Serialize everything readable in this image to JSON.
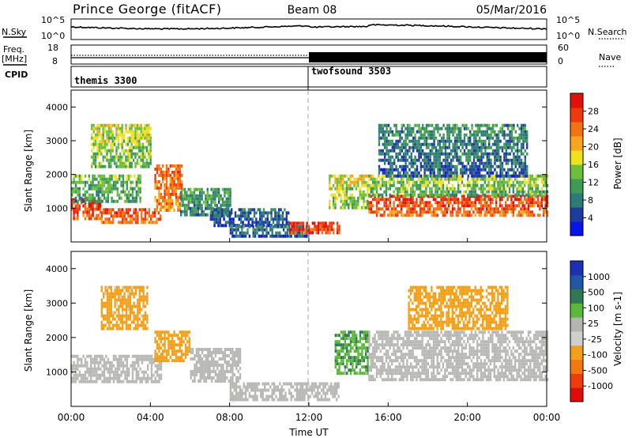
{
  "header": {
    "station": "Prince George (fitACF)",
    "beam": "Beam 08",
    "date": "05/Mar/2016"
  },
  "strip_labels": {
    "nsky": "N.Sky",
    "nsearch": "N.Search",
    "freq_top": "Freq.",
    "freq_unit": "[MHz]",
    "nave": "Nave",
    "cpid": "CPID",
    "noise_top_left": "10^5",
    "noise_bottom_left": "10^0",
    "noise_top_right": "10^5",
    "noise_bottom_right": "10^0",
    "freq_top_tick": "18",
    "freq_bottom_tick": "8",
    "nave_top_tick": "60",
    "nave_bottom_tick": "0"
  },
  "cpid_modes": [
    {
      "label": "themis 3300",
      "start_hour": 0,
      "end_hour": 12
    },
    {
      "label": "twofsound 3503",
      "start_hour": 12,
      "end_hour": 24
    }
  ],
  "colors": {
    "power_scale": [
      "#0a14e6",
      "#1e3c9c",
      "#2d7a78",
      "#3f9a55",
      "#6cbf3c",
      "#f0e01e",
      "#f7a51e",
      "#f07314",
      "#ee3a0e",
      "#e0100b"
    ],
    "velocity_scale": [
      "#1d2fb4",
      "#2257a8",
      "#2f7a55",
      "#5cb83a",
      "#b4b4b0",
      "#cfcfcb",
      "#f2a01a",
      "#f07a0f",
      "#ee3c0f",
      "#e00c0c"
    ],
    "ground_scatter": "#b8b8b4"
  },
  "chart_data": [
    {
      "type": "heatmap",
      "panel": "power",
      "ylabel": "Slant Range [km]",
      "yticks": [
        "1000",
        "2000",
        "3000",
        "4000"
      ],
      "colorbar_label": "Power [dB]",
      "colorbar_ticks": [
        "4",
        "8",
        "12",
        "16",
        "20",
        "24",
        "28"
      ],
      "ylim": [
        0,
        4500
      ],
      "zlim": [
        0,
        32
      ],
      "regions": [
        {
          "t0": 0.0,
          "t1": 1.5,
          "r0": 700,
          "r1": 1300,
          "level": 29
        },
        {
          "t0": 1.5,
          "t1": 4.5,
          "r0": 600,
          "r1": 1000,
          "level": 27
        },
        {
          "t0": 4.2,
          "t1": 5.6,
          "r0": 900,
          "r1": 2300,
          "level": 26
        },
        {
          "t0": 0.0,
          "t1": 3.5,
          "r0": 1200,
          "r1": 2000,
          "level": 14
        },
        {
          "t0": 1.0,
          "t1": 4.0,
          "r0": 2200,
          "r1": 3500,
          "level": 17
        },
        {
          "t0": 5.5,
          "t1": 8.0,
          "r0": 800,
          "r1": 1600,
          "level": 12
        },
        {
          "t0": 7.0,
          "t1": 11.0,
          "r0": 500,
          "r1": 1000,
          "level": 8
        },
        {
          "t0": 8.0,
          "t1": 12.0,
          "r0": 200,
          "r1": 500,
          "level": 9
        },
        {
          "t0": 11.0,
          "t1": 13.5,
          "r0": 300,
          "r1": 600,
          "level": 30
        },
        {
          "t0": 13.0,
          "t1": 15.0,
          "r0": 1000,
          "r1": 2000,
          "level": 18
        },
        {
          "t0": 15.0,
          "t1": 24.0,
          "r0": 800,
          "r1": 1400,
          "level": 28
        },
        {
          "t0": 15.0,
          "t1": 24.0,
          "r0": 1400,
          "r1": 2000,
          "level": 16
        },
        {
          "t0": 15.5,
          "t1": 23.0,
          "r0": 2000,
          "r1": 3500,
          "level": 10
        }
      ]
    },
    {
      "type": "heatmap",
      "panel": "velocity",
      "ylabel": "Slant Range [km]",
      "yticks": [
        "1000",
        "2000",
        "3000",
        "4000"
      ],
      "colorbar_label": "Velocity [m s-1]",
      "colorbar_ticks": [
        "1000",
        "500",
        "100",
        "25",
        "-25",
        "-100",
        "-500",
        "-1000"
      ],
      "ylim": [
        0,
        4500
      ],
      "xlabel": "Time UT",
      "xticks": [
        "00:00",
        "04:00",
        "08:00",
        "12:00",
        "16:00",
        "20:00",
        "00:00"
      ],
      "regions": [
        {
          "t0": 0.0,
          "t1": 4.5,
          "r0": 700,
          "r1": 1500,
          "level": "ground"
        },
        {
          "t0": 4.2,
          "t1": 6.0,
          "r0": 1300,
          "r1": 2200,
          "level": -200
        },
        {
          "t0": 1.5,
          "t1": 3.8,
          "r0": 2300,
          "r1": 3500,
          "level": -150
        },
        {
          "t0": 6.0,
          "t1": 8.5,
          "r0": 700,
          "r1": 1700,
          "level": "ground"
        },
        {
          "t0": 8.0,
          "t1": 13.5,
          "r0": 200,
          "r1": 700,
          "level": "ground"
        },
        {
          "t0": 13.3,
          "t1": 15.0,
          "r0": 1000,
          "r1": 2200,
          "level": 80
        },
        {
          "t0": 15.0,
          "t1": 24.0,
          "r0": 800,
          "r1": 2200,
          "level": "ground"
        },
        {
          "t0": 17.0,
          "t1": 22.0,
          "r0": 2300,
          "r1": 3500,
          "level": -300
        }
      ]
    }
  ]
}
